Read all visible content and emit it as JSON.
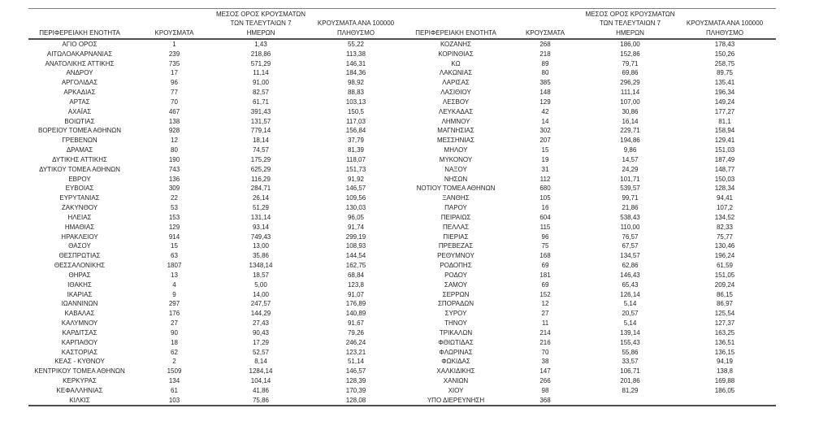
{
  "colors": {
    "text": "#262626",
    "border_light": "#7f7f7f",
    "border_dark": "#4d4d4d",
    "background": "#ffffff"
  },
  "table": {
    "header": {
      "region": "ΠΕΡΙΦΕΡΕΙΑΚΗ ΕΝΟΤΗΤΑ",
      "cases": "ΚΡΟΥΣΜΑΤΑ",
      "avg7_lines": [
        "ΜΕΣΟΣ ΟΡΟΣ ΚΡΟΥΣΜΑΤΩΝ",
        "ΤΩΝ ΤΕΛΕΥΤΑΙΩΝ 7",
        "ΗΜΕΡΩΝ"
      ],
      "per100k_lines": [
        "ΚΡΟΥΣΜΑΤΑ ΑΝΑ 100000",
        "ΠΛΗΘΥΣΜΟ"
      ]
    },
    "left_rows": [
      [
        "ΑΓΙΟ ΟΡΟΣ",
        "1",
        "1,43",
        "55,22"
      ],
      [
        "ΑΙΤΩΛΟΑΚΑΡΝΑΝΙΑΣ",
        "239",
        "218,86",
        "113,38"
      ],
      [
        "ΑΝΑΤΟΛΙΚΗΣ ΑΤΤΙΚΗΣ",
        "735",
        "571,29",
        "146,31"
      ],
      [
        "ΑΝΔΡΟΥ",
        "17",
        "11,14",
        "184,36"
      ],
      [
        "ΑΡΓΟΛΙΔΑΣ",
        "96",
        "91,00",
        "98,92"
      ],
      [
        "ΑΡΚΑΔΙΑΣ",
        "77",
        "82,57",
        "88,83"
      ],
      [
        "ΑΡΤΑΣ",
        "70",
        "61,71",
        "103,13"
      ],
      [
        "ΑΧΑΪΑΣ",
        "467",
        "391,43",
        "150,5"
      ],
      [
        "ΒΟΙΩΤΙΑΣ",
        "138",
        "131,57",
        "117,03"
      ],
      [
        "ΒΟΡΕΙΟΥ ΤΟΜΕΑ ΑΘΗΝΩΝ",
        "928",
        "779,14",
        "156,84"
      ],
      [
        "ΓΡΕΒΕΝΩΝ",
        "12",
        "18,14",
        "37,79"
      ],
      [
        "ΔΡΑΜΑΣ",
        "80",
        "74,57",
        "81,39"
      ],
      [
        "ΔΥΤΙΚΗΣ ΑΤΤΙΚΗΣ",
        "190",
        "175,29",
        "118,07"
      ],
      [
        "ΔΥΤΙΚΟΥ ΤΟΜΕΑ ΑΘΗΝΩΝ",
        "743",
        "625,29",
        "151,73"
      ],
      [
        "ΕΒΡΟΥ",
        "136",
        "116,29",
        "91,92"
      ],
      [
        "ΕΥΒΟΙΑΣ",
        "309",
        "284,71",
        "146,57"
      ],
      [
        "ΕΥΡΥΤΑΝΙΑΣ",
        "22",
        "26,14",
        "109,56"
      ],
      [
        "ΖΑΚΥΝΘΟΥ",
        "53",
        "51,29",
        "130,03"
      ],
      [
        "ΗΛΕΙΑΣ",
        "153",
        "131,14",
        "96,05"
      ],
      [
        "ΗΜΑΘΙΑΣ",
        "129",
        "93,14",
        "91,74"
      ],
      [
        "ΗΡΑΚΛΕΙΟΥ",
        "914",
        "749,43",
        "299,19"
      ],
      [
        "ΘΑΣΟΥ",
        "15",
        "13,00",
        "108,93"
      ],
      [
        "ΘΕΣΠΡΩΤΙΑΣ",
        "63",
        "35,86",
        "144,54"
      ],
      [
        "ΘΕΣΣΑΛΟΝΙΚΗΣ",
        "1807",
        "1348,14",
        "162,75"
      ],
      [
        "ΘΗΡΑΣ",
        "13",
        "18,57",
        "68,84"
      ],
      [
        "ΙΘΑΚΗΣ",
        "4",
        "5,00",
        "123,8"
      ],
      [
        "ΙΚΑΡΙΑΣ",
        "9",
        "14,00",
        "91,07"
      ],
      [
        "ΙΩΑΝΝΙΝΩΝ",
        "297",
        "247,57",
        "176,89"
      ],
      [
        "ΚΑΒΑΛΑΣ",
        "176",
        "144,29",
        "140,89"
      ],
      [
        "ΚΑΛΥΜΝΟΥ",
        "27",
        "27,43",
        "91,67"
      ],
      [
        "ΚΑΡΔΙΤΣΑΣ",
        "90",
        "90,43",
        "79,26"
      ],
      [
        "ΚΑΡΠΑΘΟΥ",
        "18",
        "17,29",
        "246,24"
      ],
      [
        "ΚΑΣΤΟΡΙΑΣ",
        "62",
        "52,57",
        "123,21"
      ],
      [
        "ΚΕΑΣ - ΚΥΘΝΟΥ",
        "2",
        "8,14",
        "51,14"
      ],
      [
        "ΚΕΝΤΡΙΚΟΥ ΤΟΜΕΑ ΑΘΗΝΩΝ",
        "1509",
        "1284,14",
        "146,57"
      ],
      [
        "ΚΕΡΚΥΡΑΣ",
        "134",
        "104,14",
        "128,39"
      ],
      [
        "ΚΕΦΑΛΛΗΝΙΑΣ",
        "61",
        "41,86",
        "170,39"
      ],
      [
        "ΚΙΛΚΙΣ",
        "103",
        "75,86",
        "128,08"
      ]
    ],
    "right_rows": [
      [
        "ΚΟΖΑΝΗΣ",
        "268",
        "186,00",
        "178,43"
      ],
      [
        "ΚΟΡΙΝΘΙΑΣ",
        "218",
        "152,86",
        "150,26"
      ],
      [
        "ΚΩ",
        "89",
        "79,71",
        "258,75"
      ],
      [
        "ΛΑΚΩΝΙΑΣ",
        "80",
        "69,86",
        "89,75"
      ],
      [
        "ΛΑΡΙΣΑΣ",
        "385",
        "296,29",
        "135,41"
      ],
      [
        "ΛΑΣΙΘΙΟΥ",
        "148",
        "111,14",
        "196,34"
      ],
      [
        "ΛΕΣΒΟΥ",
        "129",
        "107,00",
        "149,24"
      ],
      [
        "ΛΕΥΚΑΔΑΣ",
        "42",
        "30,86",
        "177,27"
      ],
      [
        "ΛΗΜΝΟΥ",
        "14",
        "16,14",
        "81,1"
      ],
      [
        "ΜΑΓΝΗΣΙΑΣ",
        "302",
        "229,71",
        "158,94"
      ],
      [
        "ΜΕΣΣΗΝΙΑΣ",
        "207",
        "194,86",
        "129,41"
      ],
      [
        "ΜΗΛΟΥ",
        "15",
        "9,86",
        "151,03"
      ],
      [
        "ΜΥΚΟΝΟΥ",
        "19",
        "14,57",
        "187,49"
      ],
      [
        "ΝΑΞΟΥ",
        "31",
        "24,29",
        "148,77"
      ],
      [
        "ΝΗΣΩΝ",
        "112",
        "101,71",
        "150,03"
      ],
      [
        "ΝΟΤΙΟΥ ΤΟΜΕΑ ΑΘΗΝΩΝ",
        "680",
        "539,57",
        "128,34"
      ],
      [
        "ΞΑΝΘΗΣ",
        "105",
        "99,71",
        "94,41"
      ],
      [
        "ΠΑΡΟΥ",
        "16",
        "21,86",
        "107,2"
      ],
      [
        "ΠΕΙΡΑΙΩΣ",
        "604",
        "538,43",
        "134,52"
      ],
      [
        "ΠΕΛΛΑΣ",
        "115",
        "110,00",
        "82,33"
      ],
      [
        "ΠΙΕΡΙΑΣ",
        "96",
        "76,57",
        "75,77"
      ],
      [
        "ΠΡΕΒΕΖΑΣ",
        "75",
        "67,57",
        "130,46"
      ],
      [
        "ΡΕΘΥΜΝΟΥ",
        "168",
        "134,57",
        "196,24"
      ],
      [
        "ΡΟΔΟΠΗΣ",
        "69",
        "62,86",
        "61,59"
      ],
      [
        "ΡΟΔΟΥ",
        "181",
        "146,43",
        "151,05"
      ],
      [
        "ΣΑΜΟΥ",
        "69",
        "65,43",
        "209,24"
      ],
      [
        "ΣΕΡΡΩΝ",
        "152",
        "126,14",
        "86,15"
      ],
      [
        "ΣΠΟΡΑΔΩΝ",
        "12",
        "5,14",
        "86,97"
      ],
      [
        "ΣΥΡΟΥ",
        "27",
        "20,57",
        "125,54"
      ],
      [
        "ΤΗΝΟΥ",
        "11",
        "5,14",
        "127,37"
      ],
      [
        "ΤΡΙΚΑΛΩΝ",
        "214",
        "139,14",
        "163,25"
      ],
      [
        "ΦΘΙΩΤΙΔΑΣ",
        "216",
        "155,43",
        "136,51"
      ],
      [
        "ΦΛΩΡΙΝΑΣ",
        "70",
        "55,86",
        "136,15"
      ],
      [
        "ΦΩΚΙΔΑΣ",
        "38",
        "33,57",
        "94,19"
      ],
      [
        "ΧΑΛΚΙΔΙΚΗΣ",
        "147",
        "106,71",
        "138,8"
      ],
      [
        "ΧΑΝΙΩΝ",
        "266",
        "201,86",
        "169,88"
      ],
      [
        "ΧΙΟΥ",
        "98",
        "81,29",
        "186,05"
      ],
      [
        "ΥΠΟ ΔΙΕΡΕΥΝΗΣΗ",
        "368",
        "",
        ""
      ]
    ]
  }
}
